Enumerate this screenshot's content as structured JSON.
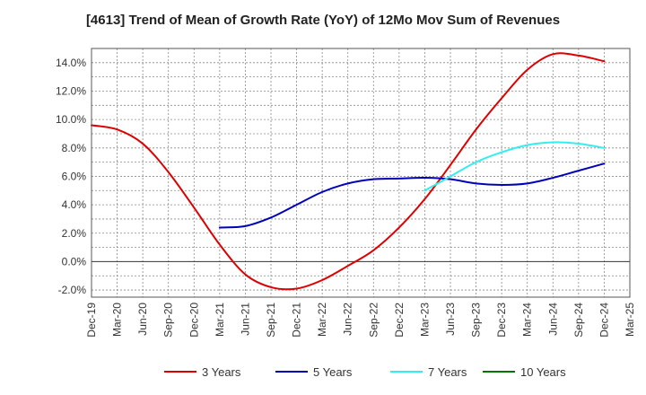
{
  "chart_data": {
    "type": "line",
    "title": "[4613]  Trend of Mean of Growth Rate (YoY) of 12Mo Mov Sum of Revenues",
    "xlabel": "",
    "ylabel": "",
    "categories": [
      "Dec-19",
      "Mar-20",
      "Jun-20",
      "Sep-20",
      "Dec-20",
      "Mar-21",
      "Jun-21",
      "Sep-21",
      "Dec-21",
      "Mar-22",
      "Jun-22",
      "Sep-22",
      "Dec-22",
      "Mar-23",
      "Jun-23",
      "Sep-23",
      "Dec-23",
      "Mar-24",
      "Jun-24",
      "Sep-24",
      "Dec-24",
      "Mar-25"
    ],
    "ylim": [
      -2.5,
      15.0
    ],
    "yticks": [
      -2.0,
      0.0,
      2.0,
      4.0,
      6.0,
      8.0,
      10.0,
      12.0,
      14.0
    ],
    "ytick_labels": [
      "-2.0%",
      "0.0%",
      "2.0%",
      "4.0%",
      "6.0%",
      "8.0%",
      "10.0%",
      "12.0%",
      "14.0%"
    ],
    "grid": true,
    "legend_position": "bottom",
    "series": [
      {
        "name": "3 Years",
        "color": "#dd0000",
        "x": [
          0,
          1,
          2,
          3,
          4,
          5,
          6,
          7,
          8,
          9,
          10,
          11,
          12,
          13,
          14,
          15,
          16,
          17,
          18,
          19,
          20
        ],
        "values": [
          9.6,
          9.3,
          8.3,
          6.3,
          3.8,
          1.2,
          -0.9,
          -1.8,
          -1.9,
          -1.3,
          -0.3,
          0.8,
          2.4,
          4.4,
          6.8,
          9.3,
          11.5,
          13.5,
          14.6,
          14.5,
          14.1
        ]
      },
      {
        "name": "5 Years",
        "color": "#0000bb",
        "x": [
          5,
          6,
          7,
          8,
          9,
          10,
          11,
          12,
          13,
          14,
          15,
          16,
          17,
          18,
          19,
          20
        ],
        "values": [
          2.4,
          2.5,
          3.1,
          4.0,
          4.9,
          5.5,
          5.8,
          5.85,
          5.9,
          5.8,
          5.5,
          5.4,
          5.5,
          5.9,
          6.4,
          6.9
        ]
      },
      {
        "name": "7 Years",
        "color": "#33eeee",
        "x": [
          13,
          14,
          15,
          16,
          17,
          18,
          19,
          20
        ],
        "values": [
          5.0,
          6.0,
          7.0,
          7.7,
          8.2,
          8.4,
          8.3,
          8.0
        ]
      },
      {
        "name": "10 Years",
        "color": "#007700",
        "x": [],
        "values": []
      }
    ]
  }
}
